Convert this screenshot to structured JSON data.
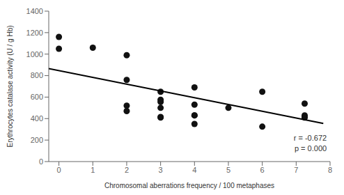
{
  "chart_data": {
    "type": "scatter",
    "xlabel": "Chromosomal aberrations frequency / 100 metaphases",
    "ylabel": "Erythrocytes catalase activity (U / g Hb)",
    "xlim": [
      -0.3,
      8
    ],
    "ylim": [
      0,
      1400
    ],
    "xticks": [
      0,
      1,
      2,
      3,
      4,
      5,
      6,
      7,
      8
    ],
    "yticks": [
      0,
      200,
      400,
      600,
      800,
      1000,
      1200,
      1400
    ],
    "grid": false,
    "series": [
      {
        "type": "scatter",
        "color": "#111111",
        "x": [
          0,
          0,
          1,
          2,
          2,
          2,
          2,
          3,
          3,
          3,
          3,
          3,
          3,
          4,
          4,
          4,
          4,
          4,
          5,
          6,
          6,
          7.25,
          7.25,
          7.25,
          7.25
        ],
        "values": [
          1160,
          1050,
          1060,
          990,
          760,
          520,
          470,
          650,
          575,
          555,
          500,
          415,
          410,
          690,
          530,
          430,
          430,
          350,
          500,
          650,
          325,
          540,
          430,
          415,
          410
        ]
      },
      {
        "type": "line",
        "color": "#000000",
        "x": [
          -0.3,
          7.8
        ],
        "values": [
          865,
          355
        ]
      }
    ],
    "annotations": [
      {
        "text": "r = -0.672",
        "x": 7.9,
        "y": 195
      },
      {
        "text": "p = 0.000",
        "x": 7.9,
        "y": 100
      }
    ]
  }
}
